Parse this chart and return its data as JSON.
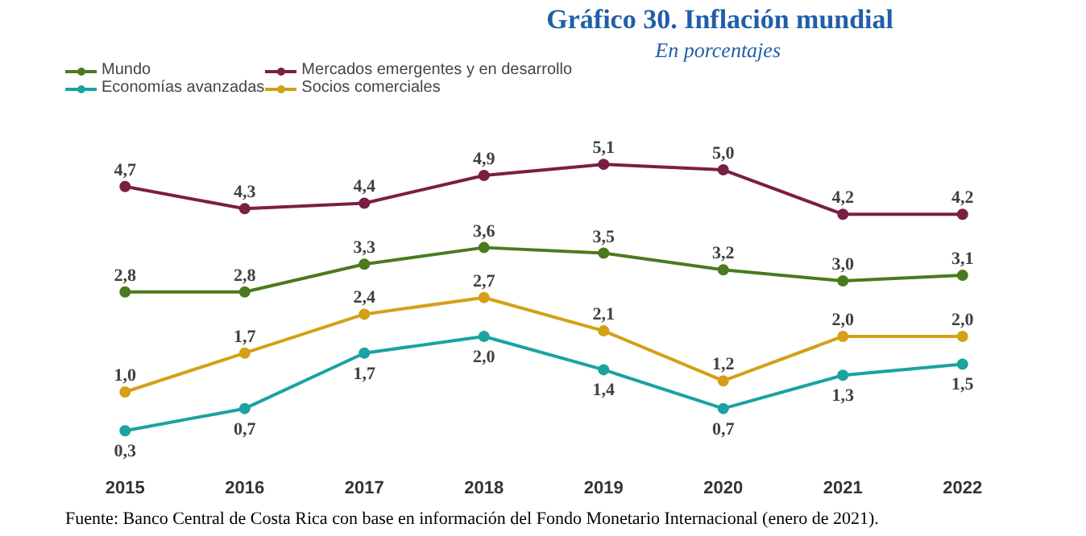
{
  "chart_data": {
    "type": "line",
    "title": "Gráfico 30. Inflación mundial",
    "subtitle": "En porcentajes",
    "categories": [
      "2015",
      "2016",
      "2017",
      "2018",
      "2019",
      "2020",
      "2021",
      "2022"
    ],
    "series": [
      {
        "name": "Mundo",
        "color": "#4a7a1e",
        "values": [
          2.8,
          2.8,
          3.3,
          3.6,
          3.5,
          3.2,
          3.0,
          3.1
        ],
        "value_labels": [
          "2,8",
          "2,8",
          "3,3",
          "3,6",
          "3,5",
          "3,2",
          "3,0",
          "3,1"
        ]
      },
      {
        "name": "Economías avanzadas",
        "color": "#1aa3a0",
        "values": [
          0.3,
          0.7,
          1.7,
          2.0,
          1.4,
          0.7,
          1.3,
          1.5
        ],
        "value_labels": [
          "0,3",
          "0,7",
          "1,7",
          "2,0",
          "1,4",
          "0,7",
          "1,3",
          "1,5"
        ]
      },
      {
        "name": "Mercados emergentes y en desarrollo",
        "color": "#7b1e45",
        "values": [
          4.7,
          4.3,
          4.4,
          4.9,
          5.1,
          5.0,
          4.2,
          4.2
        ],
        "value_labels": [
          "4,7",
          "4,3",
          "4,4",
          "4,9",
          "5,1",
          "5,0",
          "4,2",
          "4,2"
        ]
      },
      {
        "name": "Socios comerciales",
        "color": "#d4a017",
        "values": [
          1.0,
          1.7,
          2.4,
          2.7,
          2.1,
          1.2,
          2.0,
          2.0
        ],
        "value_labels": [
          "1,0",
          "1,7",
          "2,4",
          "2,7",
          "2,1",
          "1,2",
          "2,0",
          "2,0"
        ]
      }
    ],
    "marker": "circle",
    "line_style": "solid",
    "legend": "top",
    "annotations": [
      "Fuente: Banco Central de Costa Rica con base en información del Fondo Monetario Internacional (enero de 2021)."
    ]
  }
}
